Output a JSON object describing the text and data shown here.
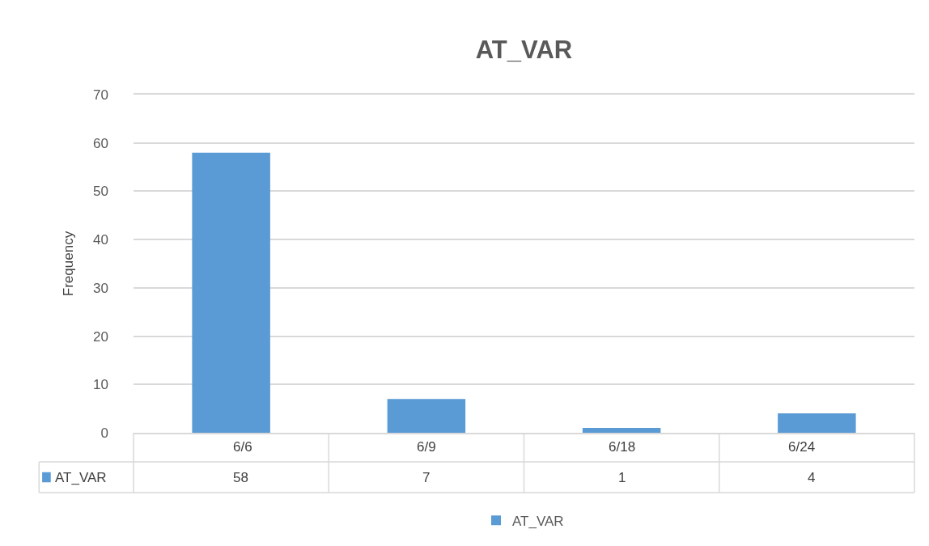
{
  "chart_data": {
    "type": "bar",
    "title": "AT_VAR",
    "ylabel": "Frequency",
    "categories": [
      "6/6",
      "6/9",
      "6/18",
      "6/24"
    ],
    "series": [
      {
        "name": "AT_VAR",
        "color": "#5b9bd5",
        "values": [
          58,
          7,
          1,
          4
        ]
      }
    ],
    "ylim": [
      0,
      70
    ],
    "yticks": [
      0,
      10,
      20,
      30,
      40,
      50,
      60,
      70
    ],
    "grid": "y",
    "legend": "bottom",
    "data_labels": true
  }
}
